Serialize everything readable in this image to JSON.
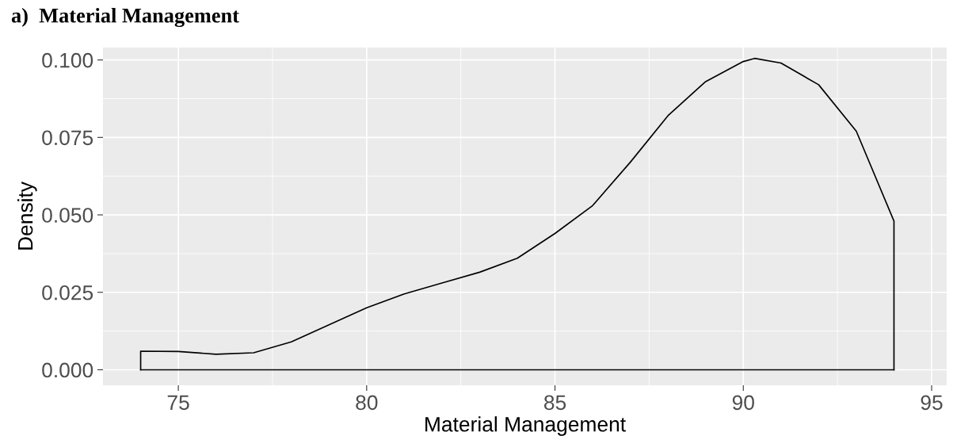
{
  "chart_data": {
    "type": "line",
    "title": "a)  Material Management",
    "xlabel": "Material Management",
    "ylabel": "Density",
    "x": [
      74,
      74,
      75,
      76,
      77,
      78,
      79,
      80,
      81,
      82,
      83,
      84,
      85,
      86,
      87,
      88,
      89,
      90,
      90.3,
      91,
      92,
      93,
      94,
      94
    ],
    "series": [
      {
        "color": "#000000",
        "values": [
          0,
          0.006,
          0.0059,
          0.005,
          0.0055,
          0.009,
          0.0145,
          0.02,
          0.0245,
          0.028,
          0.0315,
          0.036,
          0.044,
          0.053,
          0.067,
          0.082,
          0.093,
          0.0995,
          0.1005,
          0.099,
          0.092,
          0.077,
          0.048,
          0
        ]
      },
      {
        "color": "#000000",
        "x": [
          74,
          94
        ],
        "values": [
          0,
          0
        ]
      }
    ],
    "xlim": [
      73.0,
      95.4
    ],
    "ylim": [
      -0.005,
      0.104
    ],
    "xticks": [
      75,
      80,
      85,
      90,
      95
    ],
    "yticks": [
      {
        "value": 0,
        "label": "0.000"
      },
      {
        "value": 0.025,
        "label": "0.025"
      },
      {
        "value": 0.05,
        "label": "0.050"
      },
      {
        "value": 0.075,
        "label": "0.075"
      },
      {
        "value": 0.1,
        "label": "0.100"
      }
    ],
    "grid": true
  }
}
